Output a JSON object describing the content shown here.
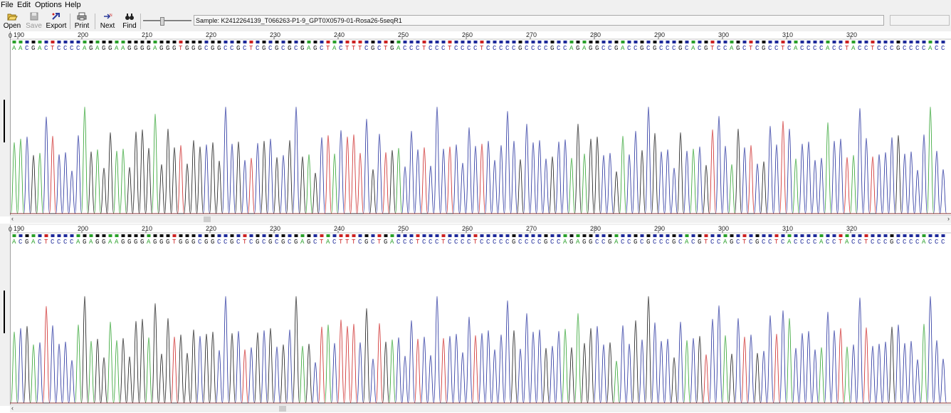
{
  "menu": {
    "file": "File",
    "edit": "Edit",
    "options": "Options",
    "help": "Help"
  },
  "toolbar": {
    "open": "Open",
    "save": "Save",
    "export": "Export",
    "print": "Print",
    "next": "Next",
    "find": "Find"
  },
  "sample": {
    "label": "Sample: K2412264139_T066263-P1-9_GPT0X0579-01-Rosa26-5seqR1"
  },
  "chromatograms": [
    {
      "first_position": 180,
      "tick_labels": [
        "190",
        "200",
        "210",
        "220",
        "230",
        "240",
        "250",
        "260",
        "270",
        "280",
        "290",
        "300",
        "310",
        "320"
      ],
      "bases": "AACGACTCCCCAGAGGAAGGGGAGGGTGGGCGGCCGCTCGCGCGCGAGCTACTTTCGCTGACCCTCCCTCCCCTCCCCCGCCCCGCCAGAGGCCGACCGCGCCCGCACGTCCAGCTCGCCTCACCCCACCTACCTCCCGCCCCACC",
      "edge_tick": "0"
    },
    {
      "first_position": 180,
      "tick_labels": [
        "190",
        "200",
        "210",
        "220",
        "230",
        "240",
        "250",
        "260",
        "270",
        "280",
        "290",
        "300",
        "310",
        "320"
      ],
      "bases": "ACGACTCCCCAGAGGAAGGGGAGGGTGGGCGGCCGCTCGCGCGCGAGCTACTTTCGCTGACCCTCCCTCCCCTCCCCCGCCCCGCCAGAGGCCGACCGCGCCCGCACGTCCAGCTCGCCTCACCCCACCTACCTCCCGCCCCACCC",
      "edge_tick": "0"
    }
  ],
  "colors": {
    "A": "#2aa02a",
    "C": "#1e2a9a",
    "G": "#111111",
    "T": "#cc2222"
  },
  "icons": {
    "open": "folder-open-icon",
    "save": "floppy-disk-icon",
    "export": "export-icon",
    "print": "printer-icon",
    "next": "next-arrow-icon",
    "find": "binoculars-icon"
  }
}
